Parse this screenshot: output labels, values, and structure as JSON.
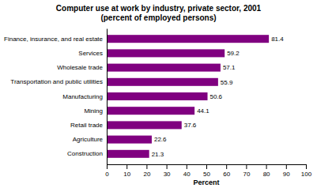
{
  "chart_data": {
    "type": "bar",
    "orientation": "horizontal",
    "title": "Computer use at work by industry, private sector, 2001\n(percent of employed persons)",
    "categories": [
      "Finance, insurance, and real estate",
      "Services",
      "Wholesale trade",
      "Transportation and public utilities",
      "Manufacturing",
      "Mining",
      "Retail trade",
      "Agriculture",
      "Construction"
    ],
    "values": [
      81.4,
      59.2,
      57.1,
      55.9,
      50.6,
      44.1,
      37.6,
      22.6,
      21.3
    ],
    "color": "#800080",
    "xlabel": "Percent",
    "xlim": [
      0,
      100
    ],
    "xticks": [
      0,
      10,
      20,
      30,
      40,
      50,
      60,
      70,
      80,
      90,
      100
    ],
    "data_labels": true,
    "grid": false
  }
}
